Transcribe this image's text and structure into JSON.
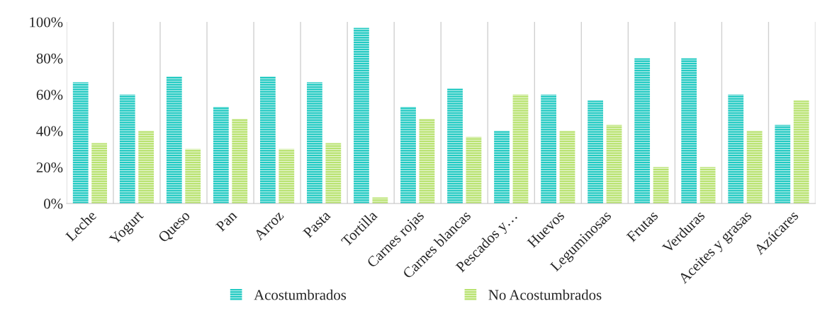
{
  "chart_data": {
    "type": "bar",
    "categories": [
      "Leche",
      "Yogurt",
      "Queso",
      "Pan",
      "Arroz",
      "Pasta",
      "Tortilla",
      "Carnes rojas",
      "Carnes blancas",
      "Pescados y…",
      "Huevos",
      "Leguminosas",
      "Frutas",
      "Verduras",
      "Aceites y grasas",
      "Azúcares"
    ],
    "series": [
      {
        "name": "Acostumbrados",
        "color": "#1fc9c1",
        "values": [
          66.7,
          60,
          70,
          53.3,
          70,
          66.7,
          96.7,
          53.3,
          63.3,
          40,
          60,
          56.7,
          80,
          80,
          60,
          43.3
        ]
      },
      {
        "name": "No Acostumbrados",
        "color": "#b7e26e",
        "values": [
          33.3,
          40,
          30,
          46.7,
          30,
          33.3,
          3.3,
          46.7,
          36.7,
          60,
          40,
          43.3,
          20,
          20,
          40,
          56.7
        ]
      }
    ],
    "ylim": [
      0,
      100
    ],
    "yticks": [
      {
        "value": 0,
        "label": "0%"
      },
      {
        "value": 20,
        "label": "20%"
      },
      {
        "value": 40,
        "label": "40%"
      },
      {
        "value": 60,
        "label": "60%"
      },
      {
        "value": 80,
        "label": "80%"
      },
      {
        "value": 100,
        "label": "100%"
      }
    ],
    "grid": "x",
    "legend": "bottom"
  }
}
